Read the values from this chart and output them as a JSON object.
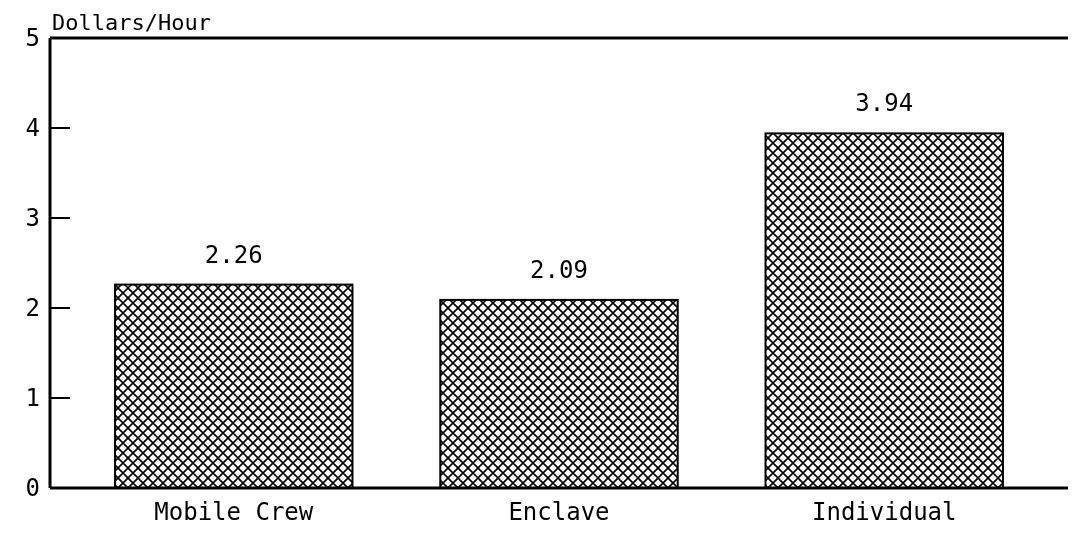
{
  "chart_data": {
    "type": "bar",
    "ylabel": "Dollars/Hour",
    "categories": [
      "Mobile Crew",
      "Enclave",
      "Individual"
    ],
    "values": [
      2.26,
      2.09,
      3.94
    ],
    "color": "#000000",
    "data_labels": true,
    "ylim": [
      0,
      5
    ],
    "yticks": [
      0,
      1,
      2,
      3,
      4,
      5
    ],
    "grid": false
  }
}
